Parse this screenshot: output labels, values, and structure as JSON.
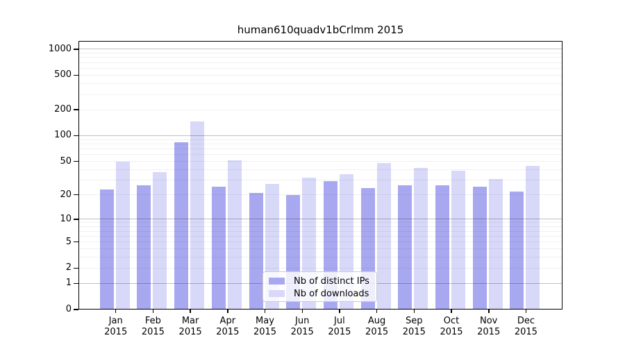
{
  "chart_data": {
    "type": "bar",
    "title": "human610quadv1bCrlmm 2015",
    "categories": [
      "Jan 2015",
      "Feb 2015",
      "Mar 2015",
      "Apr 2015",
      "May 2015",
      "Jun 2015",
      "Jul 2015",
      "Aug 2015",
      "Sep 2015",
      "Oct 2015",
      "Nov 2015",
      "Dec 2015"
    ],
    "series": [
      {
        "name": "Nb of distinct IPs",
        "color": "#a8a8f0",
        "values": [
          23,
          26,
          83,
          25,
          21,
          20,
          29,
          24,
          26,
          26,
          25,
          22
        ]
      },
      {
        "name": "Nb of downloads",
        "color": "#d8d8f8",
        "values": [
          50,
          37,
          147,
          51,
          27,
          32,
          35,
          48,
          42,
          39,
          31,
          44
        ]
      }
    ],
    "xlabel": "",
    "ylabel": "",
    "y_axis": {
      "scale": "log1p",
      "ticks": [
        0,
        1,
        2,
        5,
        10,
        20,
        50,
        100,
        200,
        500,
        1000
      ],
      "range": [
        0,
        1250
      ]
    },
    "grid": "horizontal; major lines at 1, 10, 100, 1000; faint minor lines at 2-9, 20-90, 200-900",
    "legend_position": "inside bottom-center"
  }
}
